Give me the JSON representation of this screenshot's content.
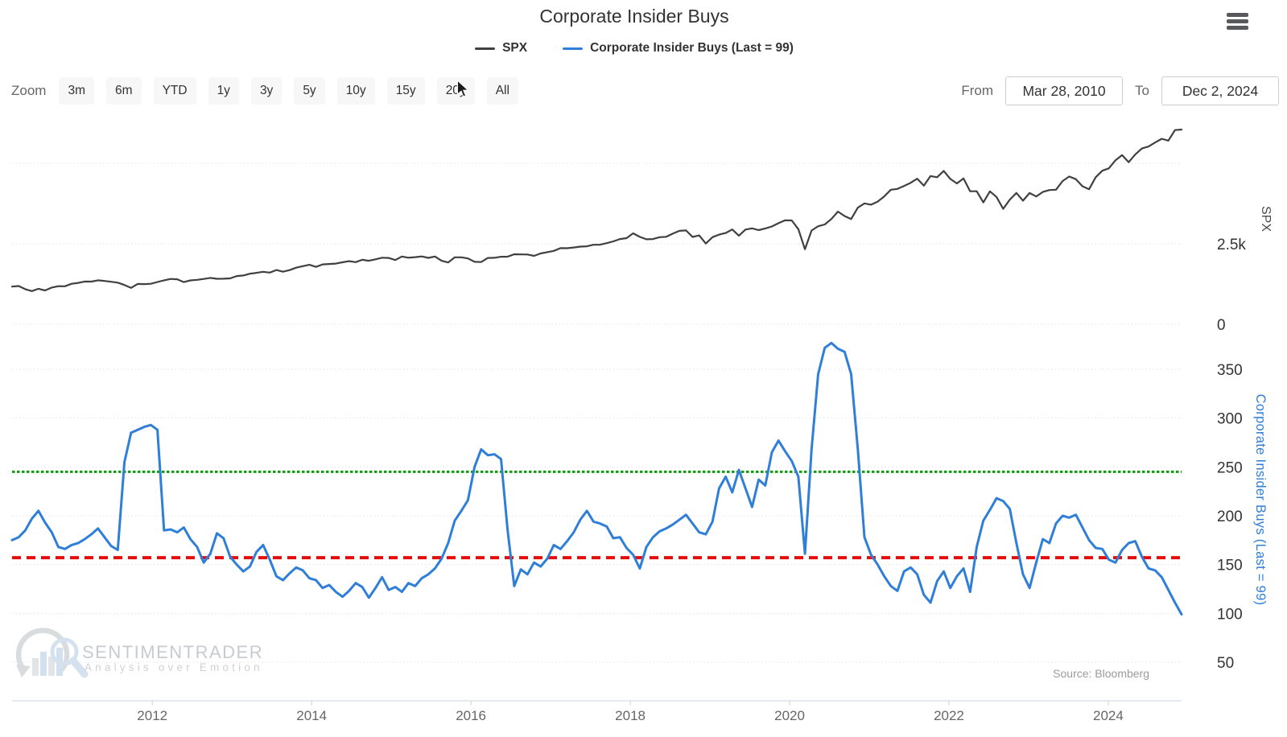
{
  "header": {
    "title": "Corporate Insider Buys"
  },
  "legend": {
    "items": [
      {
        "label": "SPX",
        "color": "#404040"
      },
      {
        "label": "Corporate Insider Buys (Last = 99)",
        "color": "#2f7ed8"
      }
    ]
  },
  "toolbar": {
    "zoom_label": "Zoom",
    "buttons": [
      "3m",
      "6m",
      "YTD",
      "1y",
      "3y",
      "5y",
      "10y",
      "15y",
      "20y",
      "All"
    ],
    "from_label": "From",
    "from_value": "Mar 28, 2010",
    "to_label": "To",
    "to_value": "Dec 2, 2024"
  },
  "watermark": {
    "brand": "SENTIMENTRADER",
    "tagline": "Analysis over Emotion"
  },
  "source_note": "Source: Bloomberg",
  "icons": {
    "menu": "hamburger-icon",
    "cursor": "mouse-cursor-icon"
  },
  "chart_data": {
    "type": "line",
    "title": "Corporate Insider Buys",
    "grid": "dotted",
    "legend_position": "top-center",
    "x_axis": {
      "range": [
        2010.24,
        2024.92
      ],
      "ticks": [
        2012,
        2014,
        2016,
        2018,
        2020,
        2022,
        2024
      ],
      "labels": [
        "2012",
        "2014",
        "2016",
        "2018",
        "2020",
        "2022",
        "2024"
      ]
    },
    "panels": [
      {
        "name": "SPX",
        "slug": "spx-series",
        "ylabel": "SPX",
        "color": "#404040",
        "ylim": [
          0,
          6325
        ],
        "y_ticks": [
          {
            "value": 5000,
            "label": ""
          },
          {
            "value": 2500,
            "label": "2.5k"
          },
          {
            "value": 0,
            "label": "0"
          }
        ],
        "x_start": 2010.24,
        "x_end": 2024.92,
        "sampling": "monthly",
        "values": [
          1169,
          1187,
          1089,
          1031,
          1102,
          1049,
          1141,
          1183,
          1181,
          1258,
          1286,
          1327,
          1326,
          1364,
          1345,
          1321,
          1292,
          1219,
          1131,
          1253,
          1247,
          1258,
          1312,
          1366,
          1408,
          1398,
          1310,
          1362,
          1379,
          1407,
          1441,
          1412,
          1416,
          1426,
          1498,
          1515,
          1569,
          1598,
          1631,
          1606,
          1686,
          1633,
          1682,
          1757,
          1806,
          1848,
          1783,
          1859,
          1872,
          1884,
          1924,
          1960,
          1931,
          2003,
          1972,
          2018,
          2068,
          2059,
          1995,
          2105,
          2068,
          2086,
          2107,
          2063,
          2104,
          1972,
          1920,
          2079,
          2080,
          2044,
          1940,
          1932,
          2060,
          2065,
          2097,
          2099,
          2174,
          2171,
          2168,
          2126,
          2199,
          2239,
          2279,
          2364,
          2363,
          2384,
          2412,
          2423,
          2470,
          2472,
          2519,
          2575,
          2648,
          2674,
          2824,
          2714,
          2641,
          2648,
          2705,
          2718,
          2816,
          2902,
          2914,
          2712,
          2760,
          2507,
          2704,
          2784,
          2834,
          2946,
          2752,
          2942,
          2980,
          2926,
          2977,
          3038,
          3141,
          3231,
          3226,
          2954,
          2330,
          2912,
          3044,
          3100,
          3271,
          3500,
          3363,
          3270,
          3622,
          3756,
          3714,
          3811,
          3973,
          4181,
          4204,
          4298,
          4395,
          4523,
          4308,
          4605,
          4567,
          4766,
          4516,
          4374,
          4530,
          4132,
          4132,
          3785,
          4130,
          3955,
          3586,
          3872,
          4080,
          3840,
          4077,
          3970,
          4109,
          4169,
          4180,
          4450,
          4589,
          4508,
          4288,
          4194,
          4568,
          4770,
          4846,
          5096,
          5254,
          5036,
          5278,
          5460,
          5522,
          5648,
          5762,
          5705,
          6032,
          6050
        ]
      },
      {
        "name": "Corporate Insider Buys",
        "slug": "insider-buys-series",
        "ylabel": "Corporate Insider Buys (Last = 99)",
        "color": "#2f7ed8",
        "last_value": 99,
        "ylim": [
          20,
          385
        ],
        "y_ticks": [
          {
            "value": 350,
            "label": "350"
          },
          {
            "value": 300,
            "label": "300"
          },
          {
            "value": 250,
            "label": "250"
          },
          {
            "value": 200,
            "label": "200"
          },
          {
            "value": 150,
            "label": "150"
          },
          {
            "value": 100,
            "label": "100"
          },
          {
            "value": 50,
            "label": "50"
          }
        ],
        "thresholds": [
          {
            "name": "upper",
            "value": 245,
            "color": "#0f9d0f",
            "style": "dashed"
          },
          {
            "name": "lower",
            "value": 157,
            "color": "#e60c0c",
            "style": "dashed"
          }
        ],
        "x_start": 2010.24,
        "x_end": 2024.92,
        "sampling": "monthly",
        "values": [
          175,
          178,
          185,
          197,
          205,
          193,
          183,
          168,
          166,
          170,
          172,
          176,
          181,
          187,
          178,
          169,
          165,
          255,
          285,
          288,
          291,
          293,
          288,
          185,
          186,
          183,
          188,
          176,
          168,
          152,
          161,
          182,
          177,
          158,
          150,
          143,
          148,
          163,
          170,
          155,
          138,
          134,
          141,
          147,
          144,
          136,
          134,
          126,
          129,
          122,
          117,
          123,
          131,
          127,
          116,
          126,
          137,
          124,
          127,
          122,
          131,
          128,
          136,
          140,
          146,
          156,
          172,
          195,
          205,
          216,
          250,
          268,
          262,
          263,
          258,
          185,
          128,
          145,
          140,
          152,
          148,
          156,
          170,
          166,
          174,
          183,
          196,
          205,
          194,
          192,
          189,
          177,
          178,
          167,
          160,
          146,
          168,
          178,
          184,
          187,
          191,
          196,
          201,
          192,
          183,
          181,
          194,
          228,
          240,
          224,
          247,
          228,
          209,
          237,
          231,
          265,
          277,
          266,
          256,
          240,
          161,
          268,
          345,
          372,
          377,
          371,
          368,
          345,
          268,
          178,
          160,
          150,
          138,
          128,
          123,
          143,
          147,
          140,
          119,
          111,
          133,
          143,
          126,
          138,
          146,
          122,
          168,
          195,
          206,
          218,
          215,
          207,
          172,
          140,
          126,
          152,
          176,
          172,
          192,
          200,
          198,
          201,
          188,
          175,
          167,
          166,
          155,
          152,
          165,
          172,
          174,
          158,
          146,
          144,
          137,
          124,
          111,
          99
        ]
      }
    ]
  }
}
